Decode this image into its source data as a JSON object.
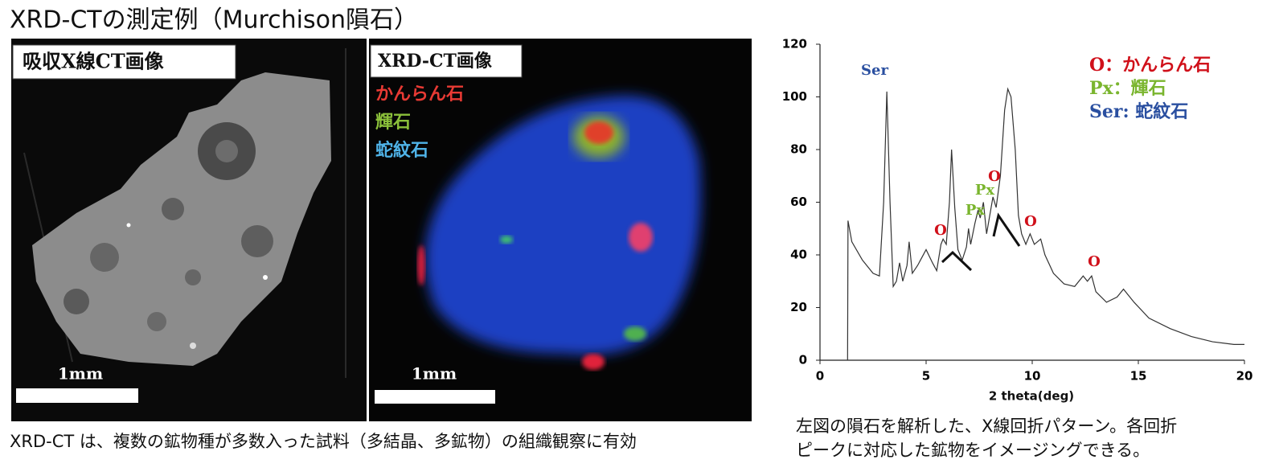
{
  "title": "XRD-CTの測定例（Murchison隕石）",
  "panels": [
    {
      "label": "吸収X線CT画像",
      "scale": "1mm"
    },
    {
      "label": "XRD-CT画像",
      "legend": [
        "かんらん石",
        "輝石",
        "蛇紋石"
      ],
      "scale": "1mm"
    }
  ],
  "caption_left": "XRD-CT は、複数の鉱物種が多数入った試料（多結晶、多鉱物）の組織観察に有効",
  "caption_right": [
    "左図の隕石を解析した、X線回折パターン。各回折",
    "ピークに対応した鉱物をイメージングできる。"
  ],
  "chart_data": {
    "type": "line",
    "x_label": "2 theta(deg)",
    "xlim": [
      0,
      20
    ],
    "ylim": [
      0,
      120
    ],
    "xticks": [
      0,
      5,
      10,
      15,
      20
    ],
    "yticks": [
      0,
      20,
      40,
      60,
      80,
      100,
      120
    ],
    "series": [
      {
        "color": "#333333",
        "x": [
          1.3,
          1.32,
          1.5,
          2,
          2.5,
          2.8,
          3.0,
          3.15,
          3.3,
          3.45,
          3.6,
          3.75,
          3.9,
          4.1,
          4.2,
          4.35,
          4.6,
          5.0,
          5.3,
          5.5,
          5.7,
          5.8,
          5.95,
          6.1,
          6.2,
          6.35,
          6.5,
          6.7,
          6.9,
          7.0,
          7.1,
          7.3,
          7.45,
          7.55,
          7.7,
          7.85,
          8.0,
          8.15,
          8.3,
          8.5,
          8.7,
          8.85,
          9.0,
          9.2,
          9.35,
          9.5,
          9.7,
          9.9,
          10.1,
          10.4,
          10.6,
          11,
          11.5,
          12,
          12.4,
          12.6,
          12.8,
          13,
          13.5,
          14,
          14.3,
          14.8,
          15.5,
          16.5,
          17.5,
          18.5,
          19.5,
          20
        ],
        "values": [
          0,
          53,
          45,
          38,
          33,
          32,
          60,
          102,
          60,
          28,
          30,
          37,
          30,
          36,
          45,
          33,
          36,
          42,
          37,
          34,
          44,
          46,
          44,
          60,
          80,
          58,
          42,
          38,
          43,
          50,
          44,
          52,
          57,
          54,
          60,
          48,
          55,
          62,
          58,
          70,
          95,
          103,
          100,
          80,
          55,
          48,
          44,
          48,
          44,
          46,
          40,
          33,
          29,
          28,
          32,
          30,
          32,
          26,
          22,
          24,
          27,
          22,
          16,
          12,
          9,
          7,
          6,
          6
        ]
      }
    ],
    "annotations": [
      {
        "text": "Ser",
        "color": "#2a4fa0"
      },
      {
        "text": "O",
        "color": "#d0101a"
      },
      {
        "text": "Px",
        "color": "#7ab52e"
      },
      {
        "text": "Px",
        "color": "#7ab52e"
      },
      {
        "text": "O",
        "color": "#d0101a"
      },
      {
        "text": "O",
        "color": "#d0101a"
      },
      {
        "text": "O",
        "color": "#d0101a"
      }
    ],
    "legend": [
      {
        "text": "O：かんらん石",
        "color": "#d0101a"
      },
      {
        "text": "Px：輝石",
        "color": "#7ab52e"
      },
      {
        "text": "Ser: 蛇紋石",
        "color": "#2a4fa0"
      }
    ]
  }
}
